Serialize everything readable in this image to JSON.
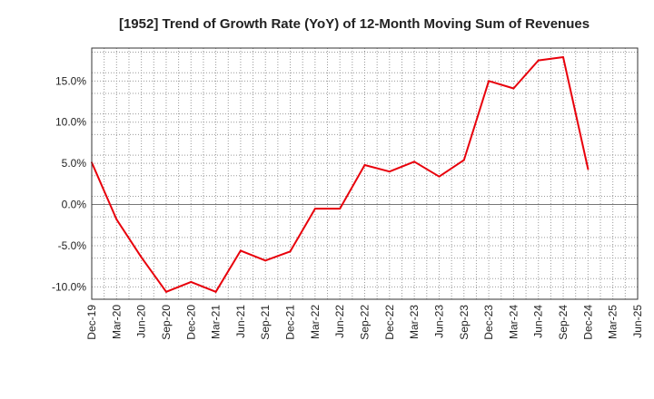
{
  "chart_data": {
    "type": "line",
    "title": "[1952]  Trend of Growth Rate (YoY) of 12-Month Moving Sum of Revenues",
    "xlabel": "",
    "ylabel": "",
    "x_tick_labels": [
      "Dec-19",
      "Mar-20",
      "Jun-20",
      "Sep-20",
      "Dec-20",
      "Mar-21",
      "Jun-21",
      "Sep-21",
      "Dec-21",
      "Mar-22",
      "Jun-22",
      "Sep-22",
      "Dec-22",
      "Mar-23",
      "Jun-23",
      "Sep-23",
      "Dec-23",
      "Mar-24",
      "Jun-24",
      "Sep-24",
      "Dec-24",
      "Mar-25",
      "Jun-25"
    ],
    "y_ticks": [
      -10,
      -5,
      0,
      5,
      10,
      15
    ],
    "y_tick_labels": [
      "-10.0%",
      "-5.0%",
      "0.0%",
      "5.0%",
      "10.0%",
      "15.0%"
    ],
    "ylim": [
      -11.5,
      19.0
    ],
    "grid": true,
    "series": [
      {
        "color": "#e8000b",
        "x": [
          "Dec-19",
          "Mar-20",
          "Jun-20",
          "Sep-20",
          "Dec-20",
          "Mar-21",
          "Jun-21",
          "Sep-21",
          "Dec-21",
          "Mar-22",
          "Jun-22",
          "Sep-22",
          "Dec-22",
          "Mar-23",
          "Jun-23",
          "Sep-23",
          "Dec-23",
          "Mar-24",
          "Jun-24",
          "Sep-24",
          "Dec-24"
        ],
        "values": [
          5.1,
          -1.8,
          -6.4,
          -10.6,
          -9.4,
          -10.6,
          -5.6,
          -6.8,
          -5.7,
          -0.5,
          -0.5,
          4.8,
          4.0,
          5.2,
          3.4,
          5.4,
          15.0,
          14.1,
          17.5,
          17.9,
          4.3
        ]
      }
    ]
  }
}
